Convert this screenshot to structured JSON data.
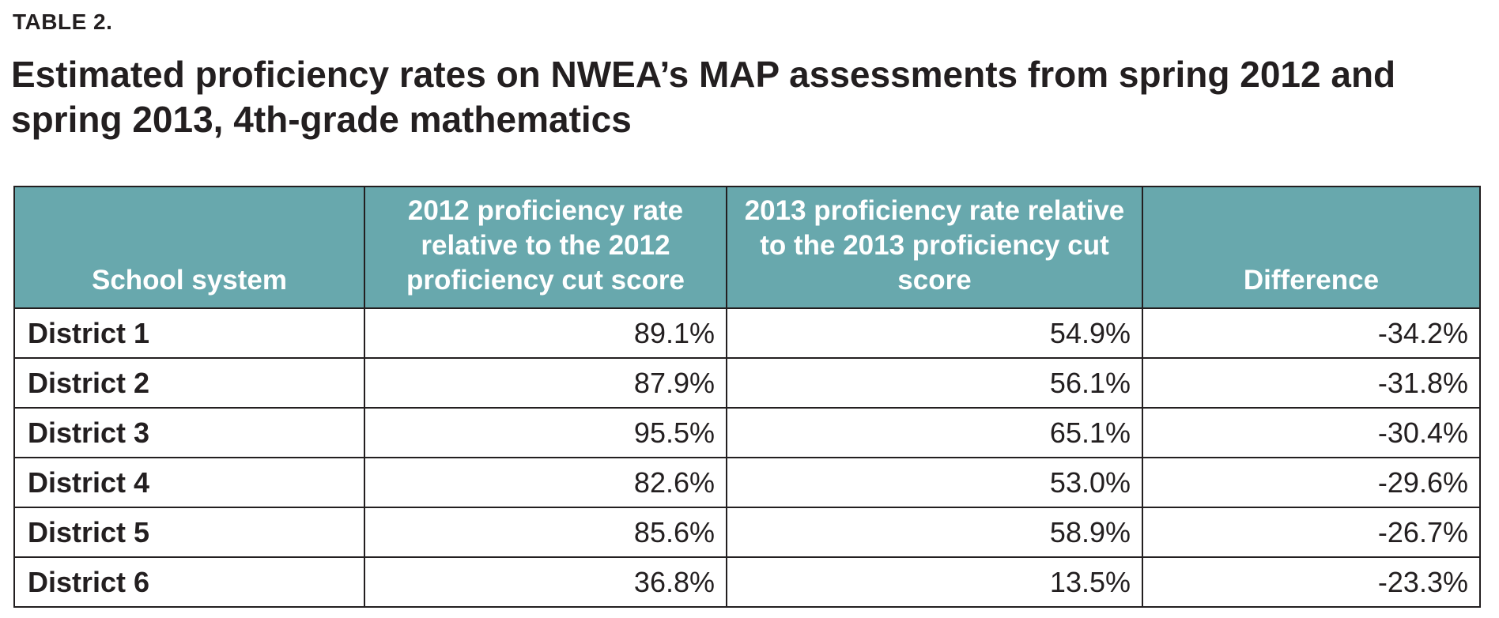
{
  "table_label": "TABLE 2.",
  "title": "Estimated proficiency rates on NWEA’s MAP assessments from spring 2012 and spring 2013, 4th-grade mathematics",
  "header_color": "#68a8ad",
  "columns": [
    "School system",
    "2012 proficiency rate relative to the 2012 proficiency cut score",
    "2013 proficiency rate relative to the 2013 proficiency cut score",
    "Difference"
  ],
  "rows": [
    {
      "system": "District 1",
      "rate_2012": "89.1%",
      "rate_2013": "54.9%",
      "difference": "-34.2%"
    },
    {
      "system": "District 2",
      "rate_2012": "87.9%",
      "rate_2013": "56.1%",
      "difference": "-31.8%"
    },
    {
      "system": "District 3",
      "rate_2012": "95.5%",
      "rate_2013": "65.1%",
      "difference": "-30.4%"
    },
    {
      "system": "District 4",
      "rate_2012": "82.6%",
      "rate_2013": "53.0%",
      "difference": "-29.6%"
    },
    {
      "system": "District 5",
      "rate_2012": "85.6%",
      "rate_2013": "58.9%",
      "difference": "-26.7%"
    },
    {
      "system": "District 6",
      "rate_2012": "36.8%",
      "rate_2013": "13.5%",
      "difference": "-23.3%"
    }
  ]
}
